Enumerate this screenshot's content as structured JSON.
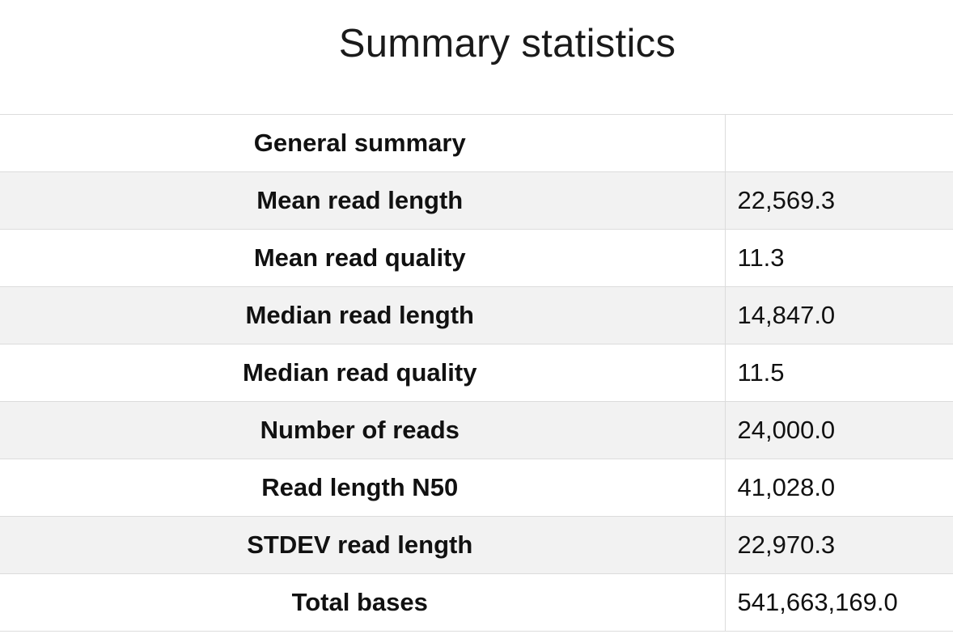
{
  "title": "Summary statistics",
  "header_row": {
    "label": "General summary",
    "value": ""
  },
  "rows": [
    {
      "label": "Mean read length",
      "value": "22,569.3"
    },
    {
      "label": "Mean read quality",
      "value": "11.3"
    },
    {
      "label": "Median read length",
      "value": "14,847.0"
    },
    {
      "label": "Median read quality",
      "value": "11.5"
    },
    {
      "label": "Number of reads",
      "value": "24,000.0"
    },
    {
      "label": "Read length N50",
      "value": "41,028.0"
    },
    {
      "label": "STDEV read length",
      "value": "22,970.3"
    },
    {
      "label": "Total bases",
      "value": "541,663,169.0"
    }
  ]
}
